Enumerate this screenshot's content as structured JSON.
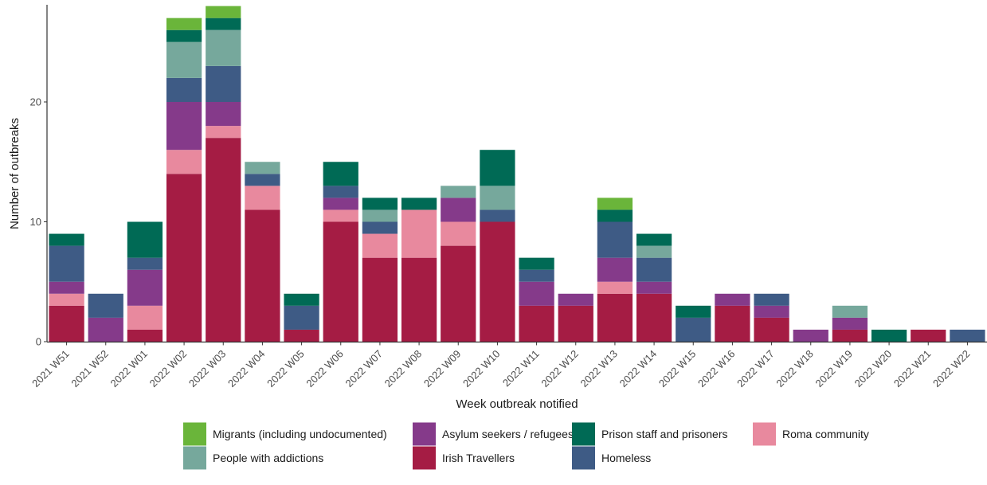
{
  "chart_data": {
    "type": "bar",
    "stacked": true,
    "title": "",
    "xlabel": "Week outbreak notified",
    "ylabel": "Number of outbreaks",
    "ylim": [
      0,
      28
    ],
    "yticks": [
      0,
      10,
      20
    ],
    "grid": false,
    "legend_position": "bottom",
    "categories": [
      "2021 W51",
      "2021 W52",
      "2022 W01",
      "2022 W02",
      "2022 W03",
      "2022 W04",
      "2022 W05",
      "2022 W06",
      "2022 W07",
      "2022 W08",
      "2022 W09",
      "2022 W10",
      "2022 W11",
      "2022 W12",
      "2022 W13",
      "2022 W14",
      "2022 W15",
      "2022 W16",
      "2022 W17",
      "2022 W18",
      "2022 W19",
      "2022 W20",
      "2022 W21",
      "2022 W22"
    ],
    "series": [
      {
        "name": "Irish Travellers",
        "color": "#A51C44",
        "values": [
          3,
          0,
          1,
          14,
          17,
          11,
          1,
          10,
          7,
          7,
          8,
          10,
          3,
          3,
          4,
          4,
          0,
          3,
          2,
          0,
          1,
          0,
          1,
          0
        ]
      },
      {
        "name": "Roma community",
        "color": "#E8899E",
        "values": [
          1,
          0,
          2,
          2,
          1,
          2,
          0,
          1,
          2,
          4,
          2,
          0,
          0,
          0,
          1,
          0,
          0,
          0,
          0,
          0,
          0,
          0,
          0,
          0
        ]
      },
      {
        "name": "Asylum seekers / refugees",
        "color": "#853A8A",
        "values": [
          1,
          2,
          3,
          4,
          2,
          0,
          0,
          1,
          0,
          0,
          2,
          0,
          2,
          1,
          2,
          1,
          0,
          1,
          1,
          1,
          1,
          0,
          0,
          0
        ]
      },
      {
        "name": "Homeless",
        "color": "#3E5B85",
        "values": [
          3,
          2,
          1,
          2,
          3,
          1,
          2,
          1,
          1,
          0,
          0,
          1,
          1,
          0,
          3,
          2,
          2,
          0,
          1,
          0,
          0,
          0,
          0,
          1
        ]
      },
      {
        "name": "People with addictions",
        "color": "#76A89C",
        "values": [
          0,
          0,
          0,
          3,
          3,
          1,
          0,
          0,
          1,
          0,
          1,
          2,
          0,
          0,
          0,
          1,
          0,
          0,
          0,
          0,
          1,
          0,
          0,
          0
        ]
      },
      {
        "name": "Prison staff and prisoners",
        "color": "#006A55",
        "values": [
          1,
          0,
          3,
          1,
          1,
          0,
          1,
          2,
          1,
          1,
          0,
          3,
          1,
          0,
          1,
          1,
          1,
          0,
          0,
          0,
          0,
          1,
          0,
          0
        ]
      },
      {
        "name": "Migrants (including undocumented)",
        "color": "#6AB53A",
        "values": [
          0,
          0,
          0,
          1,
          1,
          0,
          0,
          0,
          0,
          0,
          0,
          0,
          0,
          0,
          1,
          0,
          0,
          0,
          0,
          0,
          0,
          0,
          0,
          0
        ]
      }
    ],
    "legend_order": [
      "Migrants (including undocumented)",
      "People with addictions",
      "Asylum seekers / refugees",
      "Irish Travellers",
      "Prison staff and prisoners",
      "Homeless",
      "Roma community"
    ]
  }
}
